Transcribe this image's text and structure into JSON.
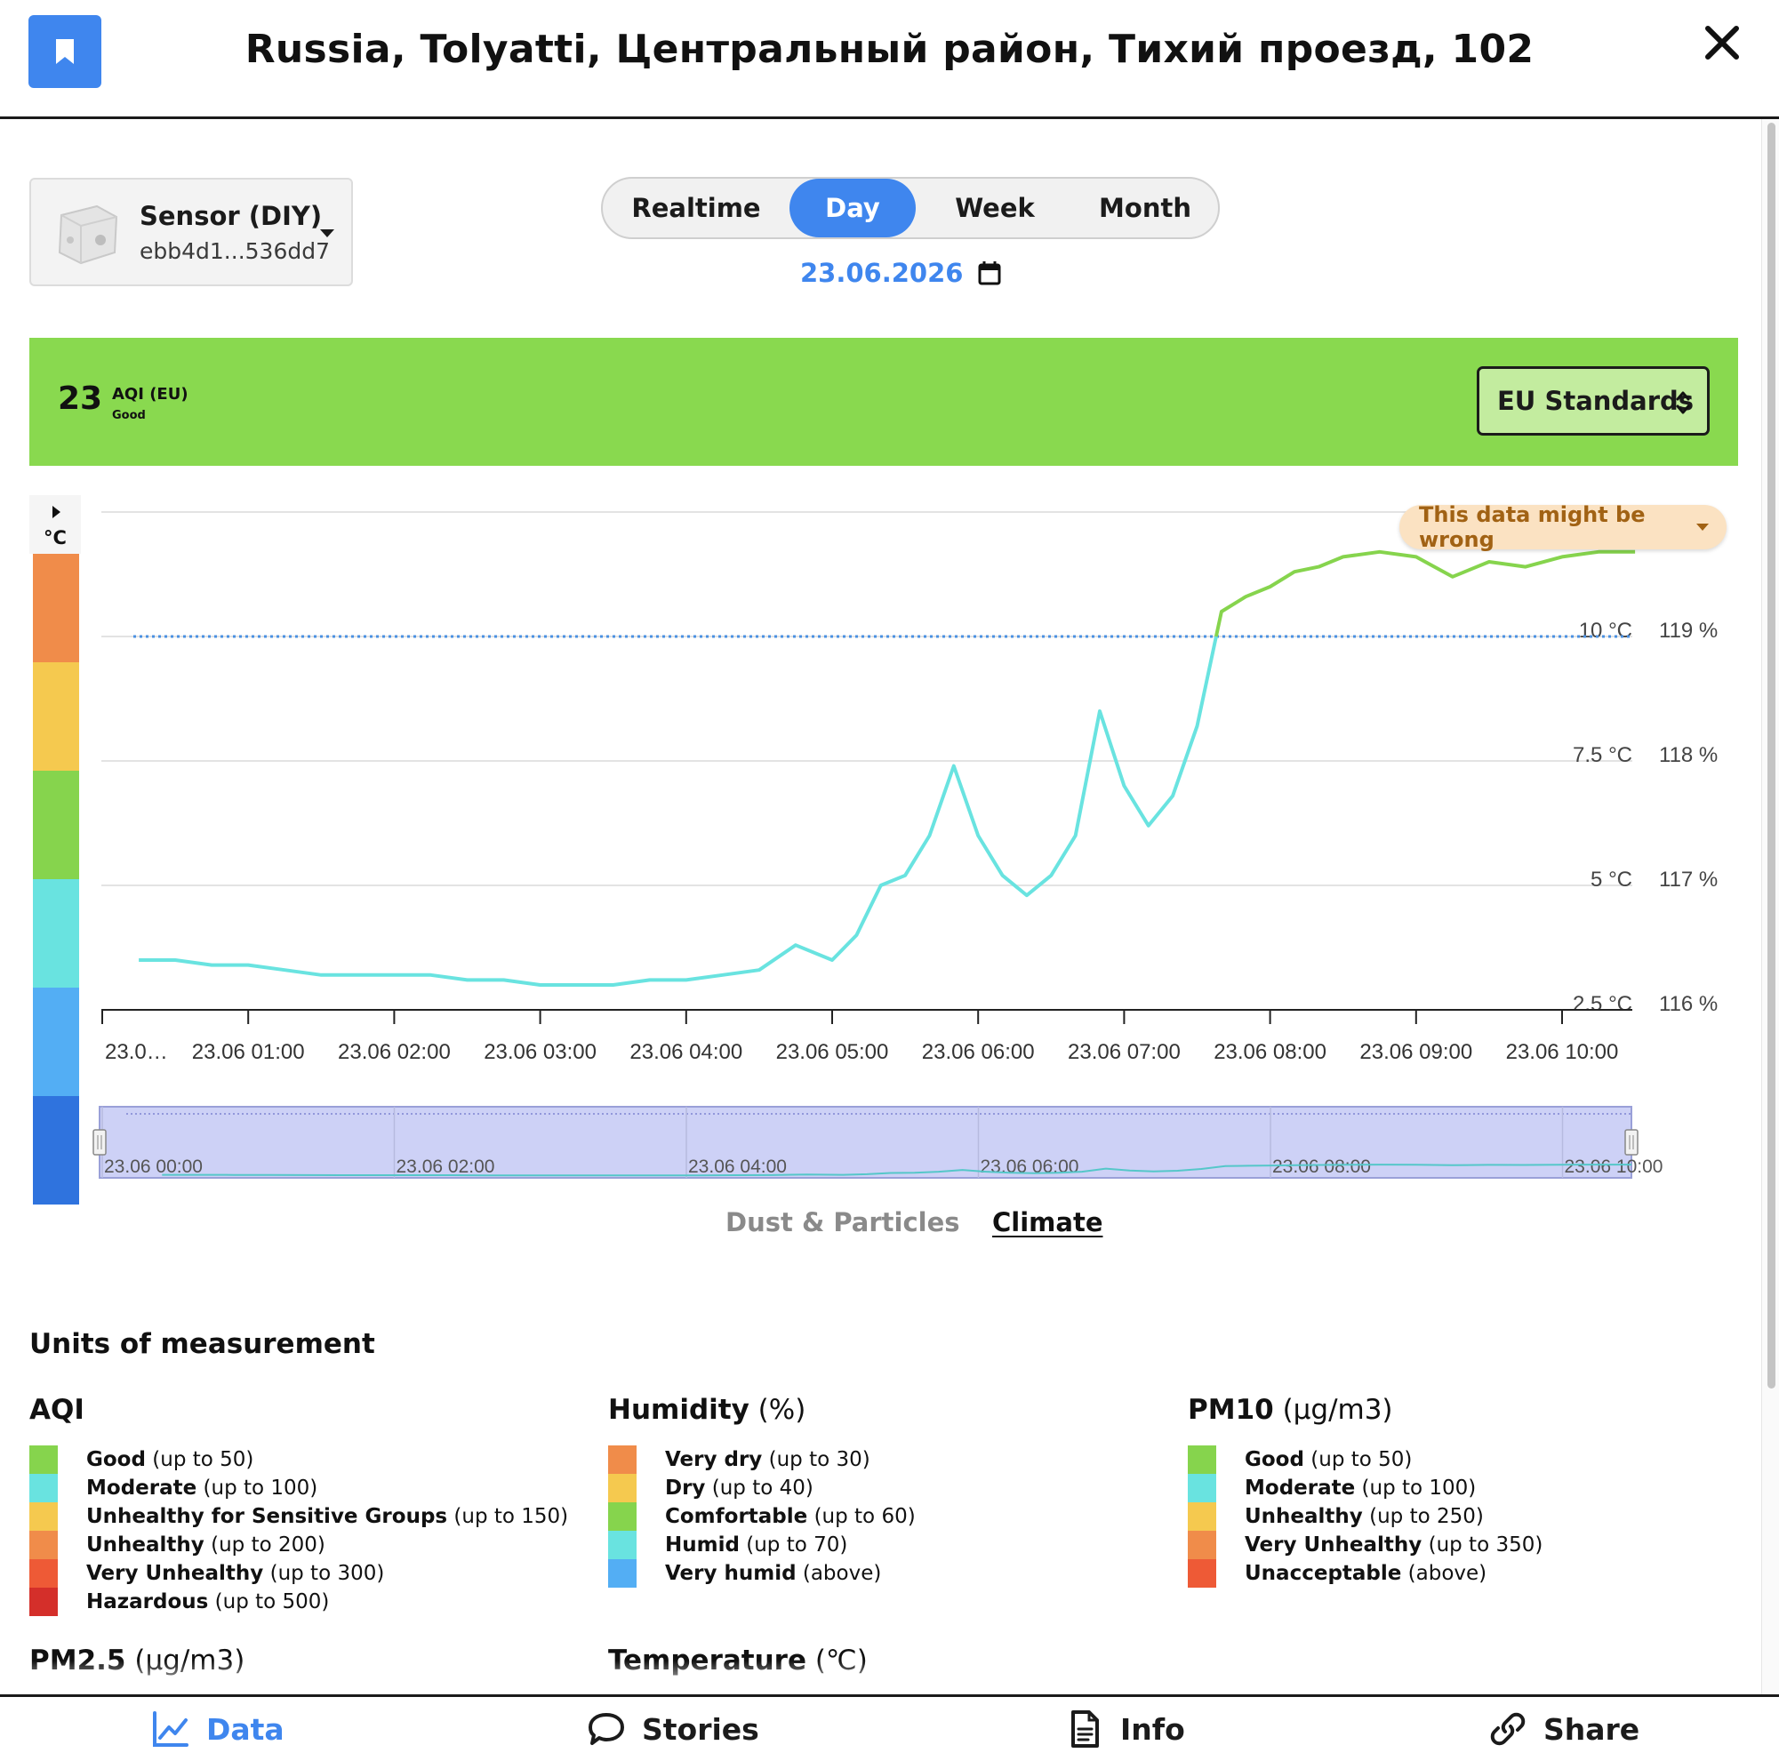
{
  "header": {
    "title": "Russia, Tolyatti, Центральный район, Тихий проезд, 102",
    "bookmark_icon": "bookmark-icon",
    "close_icon": "close-icon"
  },
  "sensor": {
    "name": "Sensor (DIY)",
    "id": "ebb4d1...536dd7"
  },
  "periods": [
    {
      "label": "Realtime",
      "active": false
    },
    {
      "label": "Day",
      "active": true
    },
    {
      "label": "Week",
      "active": false
    },
    {
      "label": "Month",
      "active": false
    }
  ],
  "date": "23.06.2026",
  "aqi": {
    "value": "23",
    "label": "AQI (EU)",
    "level": "Good",
    "standard": "EU Standards",
    "band_color": "#89d94f"
  },
  "scale": {
    "unit": "°C",
    "colors": [
      "#f08c4a",
      "#f5c94f",
      "#86d44d",
      "#69e3e0",
      "#53aef4",
      "#2f73de"
    ]
  },
  "warning": "This data might be wrong",
  "chart_data": {
    "type": "line",
    "x": [
      "23.06 00:15",
      "23.06 00:30",
      "23.06 00:45",
      "23.06 01:00",
      "23.06 01:15",
      "23.06 01:30",
      "23.06 01:45",
      "23.06 02:00",
      "23.06 02:15",
      "23.06 02:30",
      "23.06 02:45",
      "23.06 03:00",
      "23.06 03:15",
      "23.06 03:30",
      "23.06 03:45",
      "23.06 04:00",
      "23.06 04:15",
      "23.06 04:30",
      "23.06 04:45",
      "23.06 05:00",
      "23.06 05:10",
      "23.06 05:20",
      "23.06 05:30",
      "23.06 05:40",
      "23.06 05:50",
      "23.06 06:00",
      "23.06 06:10",
      "23.06 06:20",
      "23.06 06:30",
      "23.06 06:40",
      "23.06 06:50",
      "23.06 07:00",
      "23.06 07:10",
      "23.06 07:20",
      "23.06 07:30",
      "23.06 07:40",
      "23.06 07:50",
      "23.06 08:00",
      "23.06 08:10",
      "23.06 08:20",
      "23.06 08:30",
      "23.06 08:45",
      "23.06 09:00",
      "23.06 09:15",
      "23.06 09:30",
      "23.06 09:45",
      "23.06 10:00",
      "23.06 10:15",
      "23.06 10:30"
    ],
    "series": [
      {
        "name": "",
        "values": [
          3.5,
          3.5,
          3.4,
          3.4,
          3.3,
          3.2,
          3.2,
          3.2,
          3.2,
          3.1,
          3.1,
          3.0,
          3.0,
          3.0,
          3.1,
          3.1,
          3.2,
          3.3,
          3.8,
          3.5,
          4.0,
          5.0,
          5.2,
          6.0,
          7.4,
          6.0,
          5.2,
          4.8,
          5.2,
          6.0,
          8.5,
          7.0,
          6.2,
          6.8,
          8.2,
          10.5,
          10.8,
          11.0,
          11.3,
          11.4,
          11.6,
          11.7,
          11.6,
          11.2,
          11.5,
          11.4,
          11.6,
          11.7,
          11.7
        ]
      }
    ],
    "xticks": [
      "23.0…",
      "23.06 01:00",
      "23.06 02:00",
      "23.06 03:00",
      "23.06 04:00",
      "23.06 05:00",
      "23.06 06:00",
      "23.06 07:00",
      "23.06 08:00",
      "23.06 09:00",
      "23.06 10:00"
    ],
    "y_ticks": [
      "2.5 °C",
      "5 °C",
      "7.5 °C",
      "10 °C"
    ],
    "y_right_ticks": [
      "116 %",
      "117 %",
      "118 %",
      "119 %"
    ],
    "ylim": [
      2.5,
      12.5
    ],
    "threshold": 10,
    "low_color": "#69e3e0",
    "high_color": "#86d44d",
    "navigator_ticks": [
      "23.06 00:00",
      "23.06 02:00",
      "23.06 04:00",
      "23.06 06:00",
      "23.06 08:00",
      "23.06 10:00"
    ],
    "grid": true
  },
  "categories": [
    {
      "label": "Dust & Particles",
      "active": false
    },
    {
      "label": "Climate",
      "active": true
    }
  ],
  "units": {
    "title": "Units of measurement",
    "groups": [
      {
        "name": "AQI",
        "unit": "",
        "items": [
          {
            "label": "Good",
            "range": " (up to 50)",
            "color": "#86d44d"
          },
          {
            "label": "Moderate",
            "range": " (up to 100)",
            "color": "#69e3e0"
          },
          {
            "label": "Unhealthy for Sensitive Groups",
            "range": " (up to 150)",
            "color": "#f5c94f"
          },
          {
            "label": "Unhealthy",
            "range": " (up to 200)",
            "color": "#f08c4a"
          },
          {
            "label": "Very Unhealthy",
            "range": " (up to 300)",
            "color": "#ee5a36"
          },
          {
            "label": "Hazardous",
            "range": " (up to 500)",
            "color": "#d42f2a"
          }
        ]
      },
      {
        "name": "Humidity",
        "unit": " (%)",
        "items": [
          {
            "label": "Very dry",
            "range": " (up to 30)",
            "color": "#f08c4a"
          },
          {
            "label": "Dry",
            "range": " (up to 40)",
            "color": "#f5c94f"
          },
          {
            "label": "Comfortable",
            "range": " (up to 60)",
            "color": "#86d44d"
          },
          {
            "label": "Humid",
            "range": " (up to 70)",
            "color": "#69e3e0"
          },
          {
            "label": "Very humid",
            "range": " (above)",
            "color": "#53aef4"
          }
        ]
      },
      {
        "name": "PM10",
        "unit": " (µg/m3)",
        "items": [
          {
            "label": "Good",
            "range": " (up to 50)",
            "color": "#86d44d"
          },
          {
            "label": "Moderate",
            "range": " (up to 100)",
            "color": "#69e3e0"
          },
          {
            "label": "Unhealthy",
            "range": " (up to 250)",
            "color": "#f5c94f"
          },
          {
            "label": "Very Unhealthy",
            "range": " (up to 350)",
            "color": "#f08c4a"
          },
          {
            "label": "Unacceptable",
            "range": " (above)",
            "color": "#ee5a36"
          }
        ]
      },
      {
        "name": "PM2.5",
        "unit": " (µg/m3)",
        "items": []
      },
      {
        "name": "Temperature",
        "unit": " (℃)",
        "items": []
      }
    ]
  },
  "nav": [
    {
      "label": "Data",
      "icon": "chart-line-icon",
      "active": true
    },
    {
      "label": "Stories",
      "icon": "speech-bubble-icon",
      "active": false
    },
    {
      "label": "Info",
      "icon": "document-icon",
      "active": false
    },
    {
      "label": "Share",
      "icon": "link-icon",
      "active": false
    }
  ]
}
